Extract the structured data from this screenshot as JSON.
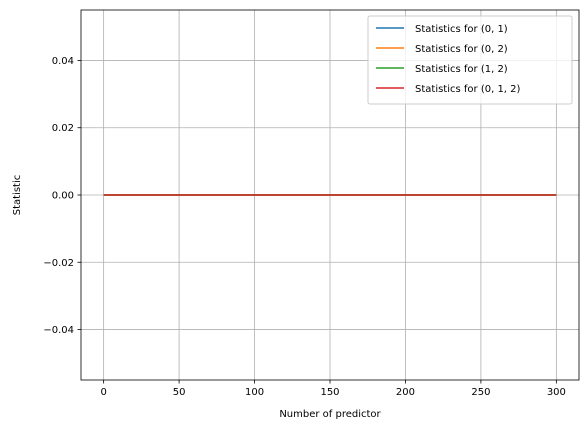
{
  "chart_data": {
    "type": "line",
    "title": "",
    "xlabel": "Number of predictor",
    "ylabel": "Statistic",
    "xlim": [
      -15,
      315
    ],
    "ylim": [
      -0.055,
      0.055
    ],
    "xticks": [
      0,
      50,
      100,
      150,
      200,
      250,
      300
    ],
    "yticks": [
      -0.04,
      -0.02,
      0.0,
      0.02,
      0.04
    ],
    "xtick_labels": [
      "0",
      "50",
      "100",
      "150",
      "200",
      "250",
      "300"
    ],
    "ytick_labels": [
      "−0.04",
      "−0.02",
      "0.00",
      "0.02",
      "0.04"
    ],
    "grid": true,
    "legend_position": "top-right",
    "series": [
      {
        "name": "Statistics for (0, 1)",
        "color": "#1f77b4",
        "x": [
          0,
          300
        ],
        "y": [
          0,
          0
        ]
      },
      {
        "name": "Statistics for (0, 2)",
        "color": "#ff7f0e",
        "x": [
          0,
          300
        ],
        "y": [
          0,
          0
        ]
      },
      {
        "name": "Statistics for (1, 2)",
        "color": "#2ca02c",
        "x": [
          0,
          300
        ],
        "y": [
          0,
          0
        ]
      },
      {
        "name": "Statistics for (0, 1, 2)",
        "color": "#d62728",
        "x": [
          0,
          300
        ],
        "y": [
          0,
          0
        ]
      }
    ]
  }
}
